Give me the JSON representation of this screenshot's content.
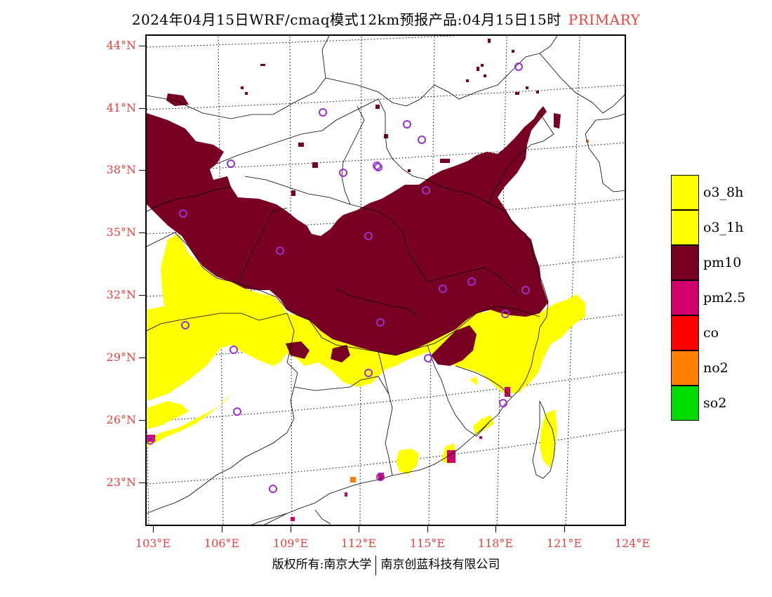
{
  "header": {
    "title": "2024年04月15日WRF/cmaq模式12km预报产品:04月15日15时",
    "tag": "PRIMARY"
  },
  "axes": {
    "lat_labels": [
      "44°N",
      "41°N",
      "38°N",
      "35°N",
      "32°N",
      "29°N",
      "26°N",
      "23°N"
    ],
    "lon_labels": [
      "103°E",
      "106°E",
      "109°E",
      "112°E",
      "115°E",
      "118°E",
      "121°E",
      "124°E"
    ]
  },
  "legend": {
    "items": [
      {
        "label": "o3_8h",
        "color": "#ffff00"
      },
      {
        "label": "o3_1h",
        "color": "#ffff00"
      },
      {
        "label": "pm10",
        "color": "#780023"
      },
      {
        "label": "pm2.5",
        "color": "#d2006e"
      },
      {
        "label": "co",
        "color": "#ff0000"
      },
      {
        "label": "no2",
        "color": "#ff7f00"
      },
      {
        "label": "so2",
        "color": "#00dc00"
      }
    ]
  },
  "footer": {
    "left": "版权所有:南京大学",
    "right": "南京创蓝科技有限公司"
  },
  "colors": {
    "pm10": "#780023",
    "o3": "#ffff00",
    "pm25": "#d2006e",
    "no2": "#ff7f00",
    "station_marker": "#9b2fd1"
  }
}
